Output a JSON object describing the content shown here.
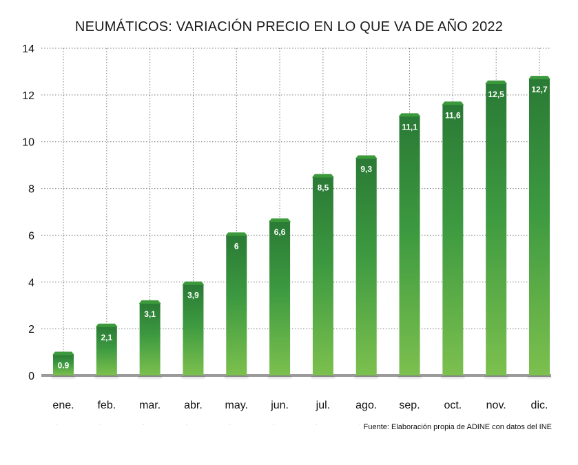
{
  "chart_data": {
    "type": "bar",
    "title": "NEUMÁTICOS: VARIACIÓN PRECIO EN LO QUE VA DE AÑO 2022",
    "xlabel": "",
    "ylabel": "",
    "categories": [
      "ene.",
      "feb.",
      "mar.",
      "abr.",
      "may.",
      "jun.",
      "jul.",
      "ago.",
      "sep.",
      "oct.",
      "nov.",
      "dic."
    ],
    "values": [
      0.9,
      2.1,
      3.1,
      3.9,
      6,
      6.6,
      8.5,
      9.3,
      11.1,
      11.6,
      12.5,
      12.7
    ],
    "value_labels": [
      "0.9",
      "2,1",
      "3,1",
      "3,9",
      "6",
      "6,6",
      "8,5",
      "9,3",
      "11,1",
      "11,6",
      "12,5",
      "12,7"
    ],
    "ylim": [
      0,
      14
    ],
    "yticks": [
      0,
      2,
      4,
      6,
      8,
      10,
      12,
      14
    ],
    "grid": true,
    "legend": "none",
    "colors": {
      "bar_top": "#2a7a35",
      "bar_mid": "#3d9a40",
      "bar_bottom": "#7cc04e",
      "cap": "#3c9a3c",
      "grid": "#777777",
      "baseline": "#9a9a9a"
    }
  },
  "source_note": "Fuente: Elaboración propia de ADINE con datos del INE"
}
